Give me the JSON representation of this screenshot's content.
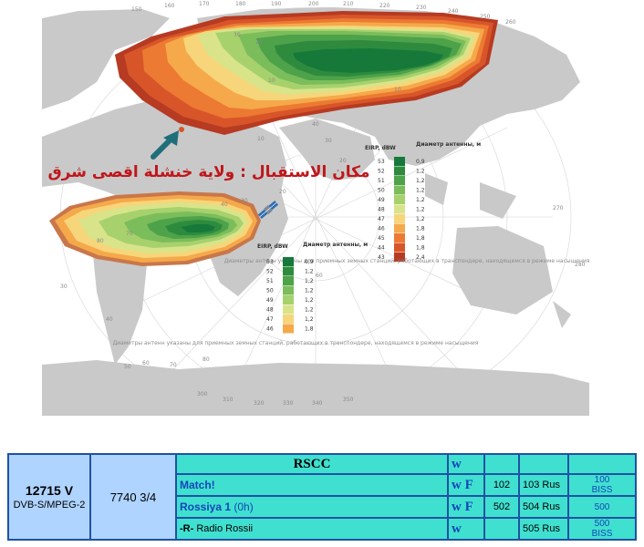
{
  "map": {
    "annotation_arabic": "مكان الاستقبال : ولاية خنشلة اقصى شرق",
    "top_ticks": [
      "150",
      "160",
      "170",
      "180",
      "190",
      "200",
      "210",
      "220",
      "230",
      "240",
      "250",
      "260"
    ],
    "right_ticks": [
      "270",
      "280"
    ],
    "left_ticks": [
      "30",
      "40"
    ],
    "bottom_ticks": [
      "300",
      "310",
      "320",
      "330",
      "340",
      "350"
    ],
    "lat_ticks": [
      "50",
      "60",
      "70",
      "80"
    ],
    "inner_ticks": [
      "10",
      "20",
      "30",
      "10",
      "20",
      "30",
      "40",
      "10",
      "20",
      "30",
      "40",
      "80",
      "70",
      "60"
    ],
    "legend_north": {
      "header_eirp": "EIRP, dBW",
      "header_diam": "Диаметр антенны, м",
      "rows": [
        {
          "eirp": "53",
          "diam": "0,9",
          "color": "#16793a"
        },
        {
          "eirp": "52",
          "diam": "1,2",
          "color": "#2e8b3e"
        },
        {
          "eirp": "51",
          "diam": "1,2",
          "color": "#4da24a"
        },
        {
          "eirp": "50",
          "diam": "1,2",
          "color": "#7bbd5a"
        },
        {
          "eirp": "49",
          "diam": "1,2",
          "color": "#a7d16d"
        },
        {
          "eirp": "48",
          "diam": "1,2",
          "color": "#d9e48a"
        },
        {
          "eirp": "47",
          "diam": "1,2",
          "color": "#f7d57a"
        },
        {
          "eirp": "46",
          "diam": "1,8",
          "color": "#f5a94a"
        },
        {
          "eirp": "45",
          "diam": "1,8",
          "color": "#ec7a32"
        },
        {
          "eirp": "44",
          "diam": "1,8",
          "color": "#d8552a"
        },
        {
          "eirp": "43",
          "diam": "2,4",
          "color": "#b63b22"
        }
      ],
      "note": "Диаметры антенн указаны для приемных земных станций, работающих в транспондере, находящемся в режиме насыщения"
    },
    "legend_south": {
      "header_eirp": "EIRP, dBW",
      "header_diam": "Диаметр антенны, м",
      "rows": [
        {
          "eirp": "53",
          "diam": "0,9",
          "color": "#16793a"
        },
        {
          "eirp": "52",
          "diam": "1,2",
          "color": "#2e8b3e"
        },
        {
          "eirp": "51",
          "diam": "1,2",
          "color": "#4da24a"
        },
        {
          "eirp": "50",
          "diam": "1,2",
          "color": "#7bbd5a"
        },
        {
          "eirp": "49",
          "diam": "1,2",
          "color": "#a7d16d"
        },
        {
          "eirp": "48",
          "diam": "1,2",
          "color": "#d9e48a"
        },
        {
          "eirp": "47",
          "diam": "1,2",
          "color": "#f7d57a"
        },
        {
          "eirp": "46",
          "diam": "1,8",
          "color": "#f5a94a"
        }
      ],
      "note": "Диаметры антенн указаны для приемных земных станций, работающих в транспондере, находящемся в режиме насыщения"
    },
    "colors": {
      "land": "#c9c9c9",
      "sea": "#ffffff",
      "annotation": "#c0161b",
      "arrow": "#1f6f7a"
    }
  },
  "table": {
    "frequency": "12715 V",
    "system": "DVB-S/MPEG-2",
    "symbol_rate": "7740 3/4",
    "provider": "RSCC",
    "provider_flag": "w",
    "channels": [
      {
        "name": "Match!",
        "extra": "",
        "flags": "w F",
        "vpid": "102",
        "apid": "103 Rus",
        "enc1": "100",
        "enc2": "BISS"
      },
      {
        "name": "Rossiya 1",
        "extra": "(0h)",
        "flags": "w F",
        "vpid": "502",
        "apid": "504 Rus",
        "enc1": "500",
        "enc2": ""
      },
      {
        "name": "-R-",
        "extra": "Radio Rossii",
        "flags": "w",
        "vpid": "",
        "apid": "505 Rus",
        "enc1": "500",
        "enc2": "BISS"
      }
    ]
  }
}
